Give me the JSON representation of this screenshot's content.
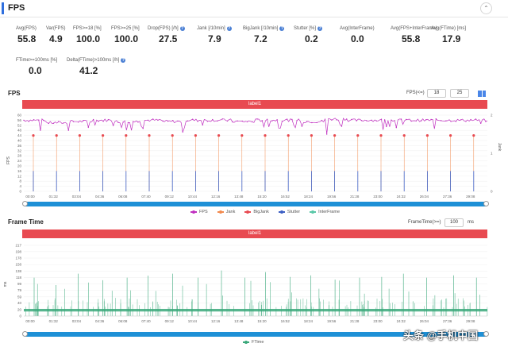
{
  "header": {
    "title": "FPS",
    "collapse_icon": "chevron-up-icon"
  },
  "metrics": [
    {
      "label": "Avg(FPS)",
      "value": "55.8",
      "help": false
    },
    {
      "label": "Var(FPS)",
      "value": "4.9",
      "help": false
    },
    {
      "label": "FPS>=18 [%]",
      "value": "100.0",
      "help": false
    },
    {
      "label": "FPS>=25 [%]",
      "value": "100.0",
      "help": false
    },
    {
      "label": "Drop(FPS) [/h]",
      "value": "27.5",
      "help": true
    },
    {
      "label": "Jank [/10min]",
      "value": "7.9",
      "help": true
    },
    {
      "label": "BigJank [/10min]",
      "value": "7.2",
      "help": true
    },
    {
      "label": "Stutter [%]",
      "value": "0.2",
      "help": true
    },
    {
      "label": "Avg(InterFrame)",
      "value": "0.0",
      "help": false
    },
    {
      "label": "Avg(FPS+InterFrame)",
      "value": "55.8",
      "help": false
    },
    {
      "label": "Avg(FTime) [ms]",
      "value": "17.9",
      "help": false
    },
    {
      "label": "FTime>=100ms [%]",
      "value": "0.0",
      "help": false
    },
    {
      "label": "Delta(FTime)>100ms [/h]",
      "value": "41.2",
      "help": true
    }
  ],
  "fps_chart": {
    "title": "FPS",
    "threshold_label": "FPS(<=)",
    "threshold_1": "18",
    "threshold_2": "25",
    "tab_label": "label1",
    "y_axis_title": "FPS",
    "y2_axis_title": "Jank",
    "y_ticks": [
      "60",
      "56",
      "52",
      "48",
      "44",
      "40",
      "36",
      "32",
      "28",
      "24",
      "20",
      "16",
      "12",
      "8",
      "4",
      "0"
    ],
    "y2_ticks": [
      "2",
      "1",
      "0"
    ],
    "x_ticks": [
      "00:00",
      "01:32",
      "03:04",
      "04:36",
      "06:08",
      "07:40",
      "09:12",
      "10:44",
      "12:16",
      "13:48",
      "15:20",
      "16:52",
      "18:24",
      "19:56",
      "21:28",
      "23:00",
      "24:32",
      "26:04",
      "27:36",
      "29:08"
    ],
    "legend": [
      "FPS",
      "Jank",
      "BigJank",
      "Stutter",
      "InterFrame"
    ],
    "colors": {
      "fps": "#c030c0",
      "jank": "#f28a4e",
      "bigjank": "#e84a51",
      "stutter": "#3d5fc4",
      "interframe": "#5ac8a8"
    }
  },
  "frametime_chart": {
    "title": "Frame Time",
    "threshold_label": "FrameTime(>=)",
    "threshold_value": "100",
    "threshold_unit": "ms",
    "tab_label": "label1",
    "y_axis_title": "ms",
    "y_ticks": [
      "217",
      "198",
      "178",
      "158",
      "138",
      "118",
      "99",
      "79",
      "59",
      "40",
      "20",
      "0"
    ],
    "x_ticks": [
      "00:00",
      "01:32",
      "03:04",
      "04:36",
      "06:08",
      "07:40",
      "09:12",
      "10:44",
      "12:16",
      "13:48",
      "15:20",
      "16:52",
      "18:24",
      "19:56",
      "21:28",
      "23:00",
      "24:32",
      "26:04",
      "27:36",
      "29:08"
    ],
    "legend": [
      "FTime"
    ],
    "colors": {
      "ftime": "#3aa87a"
    }
  },
  "chart_data": [
    {
      "type": "line",
      "title": "FPS",
      "ylabel": "FPS",
      "ylim": [
        0,
        60
      ],
      "y2label": "Jank",
      "y2lim": [
        0,
        2
      ],
      "x": [
        "00:00",
        "01:32",
        "03:04",
        "04:36",
        "06:08",
        "07:40",
        "09:12",
        "10:44",
        "12:16",
        "13:48",
        "15:20",
        "16:52",
        "18:24",
        "19:56",
        "21:28",
        "23:00",
        "24:32",
        "26:04",
        "27:36",
        "29:08"
      ],
      "series": [
        {
          "name": "FPS",
          "values": [
            56,
            54,
            55,
            56,
            55,
            56,
            55,
            56,
            56,
            55,
            56,
            56,
            55,
            57,
            56,
            56,
            56,
            56,
            56,
            56
          ]
        },
        {
          "name": "Jank",
          "values": [
            1,
            1,
            1,
            1,
            1,
            1,
            1,
            1,
            1,
            1,
            1,
            1,
            1,
            1,
            1,
            1,
            1,
            1,
            1,
            1
          ]
        },
        {
          "name": "BigJank",
          "values": [
            1,
            1,
            1,
            1,
            1,
            1,
            1,
            1,
            1,
            1,
            1,
            1,
            1,
            1,
            1,
            1,
            1,
            1,
            1,
            1
          ]
        }
      ],
      "legend": "bottom",
      "grid": true
    },
    {
      "type": "bar",
      "title": "Frame Time",
      "ylabel": "ms",
      "ylim": [
        0,
        217
      ],
      "x": [
        "00:00",
        "01:32",
        "03:04",
        "04:36",
        "06:08",
        "07:40",
        "09:12",
        "10:44",
        "12:16",
        "13:48",
        "15:20",
        "16:52",
        "18:24",
        "19:56",
        "21:28",
        "23:00",
        "24:32",
        "26:04",
        "27:36",
        "29:08"
      ],
      "series": [
        {
          "name": "FTime",
          "values": [
            17,
            17,
            18,
            17,
            18,
            17,
            18,
            18,
            17,
            18,
            17,
            18,
            18,
            17,
            18,
            17,
            18,
            18,
            17,
            18
          ]
        }
      ],
      "spikes": [
        118,
        95,
        130,
        110,
        118,
        124,
        130,
        118,
        140,
        118,
        135,
        120,
        125,
        112,
        118,
        120,
        130,
        118,
        125,
        118
      ],
      "legend": "bottom",
      "grid": true
    }
  ],
  "watermark": "头条 @手机中国"
}
